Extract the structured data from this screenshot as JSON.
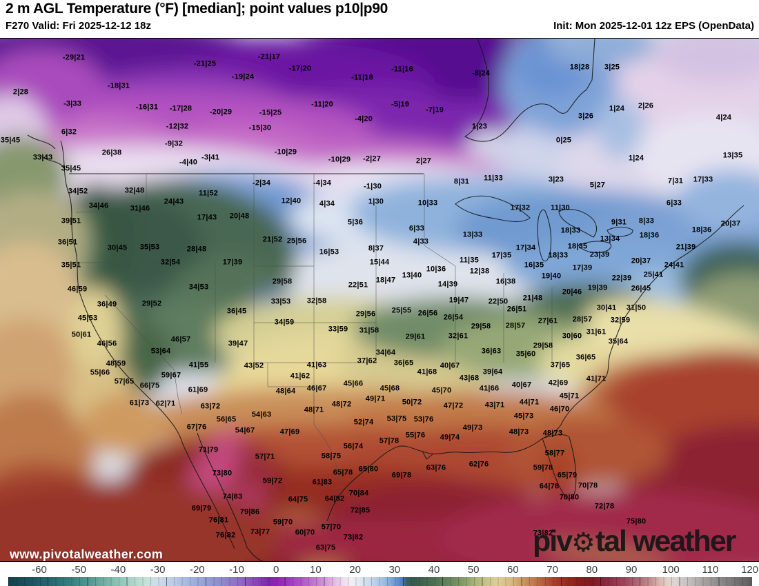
{
  "header": {
    "title": "2 m AGL Temperature (°F) [median]; point values p10|p90",
    "valid": "F270 Valid: Fri 2025-12-12 18z",
    "init": "Init: Mon 2025-12-01 12z EPS (OpenData)"
  },
  "watermark": {
    "url": "www.pivotalweather.com",
    "logo_left": "piv",
    "logo_gear": "⚙",
    "logo_right": "tal weather"
  },
  "colorbar": {
    "units": "°F",
    "ticks": [
      -60,
      -50,
      -40,
      -30,
      -20,
      -10,
      0,
      10,
      20,
      30,
      40,
      50,
      60,
      70,
      80,
      90,
      100,
      110,
      120
    ],
    "stops": [
      [
        -68,
        "#14414d"
      ],
      [
        -62,
        "#1c5360"
      ],
      [
        -57,
        "#27686f"
      ],
      [
        -52,
        "#387f80"
      ],
      [
        -47,
        "#549992"
      ],
      [
        -42,
        "#7db8ab"
      ],
      [
        -37,
        "#a8d2c5"
      ],
      [
        -33,
        "#c6e2d8"
      ],
      [
        -30,
        "#cfdde8"
      ],
      [
        -26,
        "#bccbe6"
      ],
      [
        -22,
        "#a4b4dd"
      ],
      [
        -18,
        "#959fd5"
      ],
      [
        -14,
        "#8e8ccd"
      ],
      [
        -10,
        "#8f70c5"
      ],
      [
        -6,
        "#8a4fb9"
      ],
      [
        -2,
        "#7d27a9"
      ],
      [
        0,
        "#8e25b0"
      ],
      [
        4,
        "#a341bd"
      ],
      [
        8,
        "#b866c8"
      ],
      [
        12,
        "#d093d6"
      ],
      [
        15,
        "#e3bce4"
      ],
      [
        17,
        "#efdcef"
      ],
      [
        19,
        "#f1eef3"
      ],
      [
        21,
        "#e2e9f2"
      ],
      [
        24,
        "#c6d8ec"
      ],
      [
        27,
        "#a3c0e2"
      ],
      [
        30,
        "#6f9cd2"
      ],
      [
        32,
        "#4a7ec2"
      ],
      [
        33,
        "#3a5f63"
      ],
      [
        35,
        "#355a4e"
      ],
      [
        39,
        "#486b51"
      ],
      [
        43,
        "#5f8058"
      ],
      [
        47,
        "#7f9966"
      ],
      [
        50,
        "#a3b175"
      ],
      [
        53,
        "#c6c287"
      ],
      [
        56,
        "#ddd096"
      ],
      [
        59,
        "#d8bd85"
      ],
      [
        62,
        "#cd9c67"
      ],
      [
        65,
        "#c07d50"
      ],
      [
        68,
        "#b25c3a"
      ],
      [
        71,
        "#a33b28"
      ],
      [
        74,
        "#95291f"
      ],
      [
        77,
        "#851f1c"
      ],
      [
        80,
        "#7c1c20"
      ],
      [
        83,
        "#84273a"
      ],
      [
        86,
        "#92384e"
      ],
      [
        89,
        "#a04c61"
      ],
      [
        92,
        "#b16c78"
      ],
      [
        95,
        "#c39190"
      ],
      [
        97,
        "#d4b4ab"
      ],
      [
        99,
        "#e2cfc5"
      ],
      [
        101,
        "#dcd5d0"
      ],
      [
        104,
        "#c6c2c0"
      ],
      [
        108,
        "#a7a4a3"
      ],
      [
        113,
        "#888687"
      ],
      [
        118,
        "#6c6a6b"
      ],
      [
        121,
        "#5e5c5d"
      ]
    ]
  },
  "stations": [
    [
      107,
      83,
      "-29|21"
    ],
    [
      297,
      92,
      "-21|25"
    ],
    [
      352,
      111,
      "-19|24"
    ],
    [
      30,
      133,
      "2|28"
    ],
    [
      172,
      124,
      "-18|31"
    ],
    [
      105,
      150,
      "-3|33"
    ],
    [
      213,
      155,
      "-16|31"
    ],
    [
      262,
      157,
      "-17|28"
    ],
    [
      320,
      162,
      "-20|29"
    ],
    [
      257,
      183,
      "-12|32"
    ],
    [
      100,
      191,
      "6|32"
    ],
    [
      252,
      208,
      "-9|32"
    ],
    [
      15,
      203,
      "35|45"
    ],
    [
      390,
      82,
      "-21|17"
    ],
    [
      435,
      99,
      "-17|20"
    ],
    [
      525,
      112,
      "-11|18"
    ],
    [
      583,
      100,
      "-11|16"
    ],
    [
      697,
      106,
      "-8|24"
    ],
    [
      467,
      151,
      "-11|20"
    ],
    [
      527,
      172,
      "-4|20"
    ],
    [
      580,
      151,
      "-5|19"
    ],
    [
      630,
      159,
      "-7|19"
    ],
    [
      392,
      163,
      "-15|25"
    ],
    [
      377,
      185,
      "-15|30"
    ],
    [
      695,
      183,
      "1|23"
    ],
    [
      840,
      97,
      "18|28"
    ],
    [
      887,
      97,
      "3|25"
    ],
    [
      894,
      157,
      "1|24"
    ],
    [
      936,
      153,
      "2|26"
    ],
    [
      849,
      168,
      "3|26"
    ],
    [
      1049,
      170,
      "4|24"
    ],
    [
      817,
      203,
      "0|25"
    ],
    [
      62,
      228,
      "33|43"
    ],
    [
      162,
      221,
      "26|38"
    ],
    [
      103,
      244,
      "35|45"
    ],
    [
      273,
      235,
      "-4|40"
    ],
    [
      305,
      228,
      "-3|41"
    ],
    [
      113,
      277,
      "34|52"
    ],
    [
      195,
      276,
      "32|48"
    ],
    [
      252,
      292,
      "24|43"
    ],
    [
      302,
      280,
      "11|52"
    ],
    [
      143,
      298,
      "34|46"
    ],
    [
      203,
      302,
      "31|46"
    ],
    [
      300,
      315,
      "17|43"
    ],
    [
      347,
      313,
      "20|48"
    ],
    [
      103,
      320,
      "39|51"
    ],
    [
      98,
      351,
      "36|51"
    ],
    [
      170,
      359,
      "30|45"
    ],
    [
      217,
      358,
      "35|53"
    ],
    [
      285,
      361,
      "28|48"
    ],
    [
      414,
      220,
      "-10|29"
    ],
    [
      492,
      231,
      "-10|29"
    ],
    [
      539,
      230,
      "-2|27"
    ],
    [
      614,
      233,
      "2|27"
    ],
    [
      379,
      265,
      "-2|34"
    ],
    [
      467,
      265,
      "-4|34"
    ],
    [
      540,
      270,
      "-1|30"
    ],
    [
      669,
      263,
      "8|31"
    ],
    [
      715,
      258,
      "11|33"
    ],
    [
      422,
      291,
      "12|40"
    ],
    [
      474,
      295,
      "4|34"
    ],
    [
      545,
      292,
      "1|30"
    ],
    [
      620,
      294,
      "10|33"
    ],
    [
      515,
      322,
      "5|36"
    ],
    [
      604,
      331,
      "6|33"
    ],
    [
      685,
      340,
      "13|33"
    ],
    [
      610,
      350,
      "4|33"
    ],
    [
      395,
      347,
      "21|52"
    ],
    [
      430,
      349,
      "25|56"
    ],
    [
      477,
      365,
      "16|53"
    ],
    [
      545,
      360,
      "8|37"
    ],
    [
      680,
      377,
      "11|35"
    ],
    [
      727,
      370,
      "17|35"
    ],
    [
      922,
      229,
      "1|24"
    ],
    [
      1062,
      225,
      "13|35"
    ],
    [
      806,
      260,
      "3|23"
    ],
    [
      866,
      268,
      "5|27"
    ],
    [
      979,
      262,
      "7|31"
    ],
    [
      1019,
      260,
      "17|33"
    ],
    [
      754,
      301,
      "17|32"
    ],
    [
      812,
      301,
      "11|30"
    ],
    [
      977,
      294,
      "6|33"
    ],
    [
      897,
      322,
      "9|31"
    ],
    [
      937,
      320,
      "8|33"
    ],
    [
      827,
      334,
      "18|33"
    ],
    [
      1017,
      333,
      "18|36"
    ],
    [
      941,
      341,
      "18|36"
    ],
    [
      1059,
      324,
      "20|37"
    ],
    [
      884,
      346,
      "13|34"
    ],
    [
      762,
      359,
      "17|34"
    ],
    [
      837,
      357,
      "18|35"
    ],
    [
      994,
      358,
      "21|39"
    ],
    [
      869,
      369,
      "23|39"
    ],
    [
      809,
      370,
      "18|33"
    ],
    [
      103,
      384,
      "35|51"
    ],
    [
      247,
      380,
      "32|54"
    ],
    [
      337,
      380,
      "17|39"
    ],
    [
      112,
      419,
      "46|59"
    ],
    [
      288,
      416,
      "34|53"
    ],
    [
      155,
      441,
      "36|49"
    ],
    [
      220,
      440,
      "29|52"
    ],
    [
      343,
      451,
      "36|45"
    ],
    [
      127,
      461,
      "45|53"
    ],
    [
      118,
      485,
      "50|61"
    ],
    [
      155,
      498,
      "46|56"
    ],
    [
      262,
      492,
      "46|57"
    ],
    [
      345,
      498,
      "39|47"
    ],
    [
      233,
      509,
      "53|64"
    ],
    [
      168,
      527,
      "48|59"
    ],
    [
      288,
      529,
      "41|55"
    ],
    [
      550,
      380,
      "15|44"
    ],
    [
      632,
      390,
      "10|36"
    ],
    [
      597,
      399,
      "13|40"
    ],
    [
      695,
      393,
      "12|38"
    ],
    [
      409,
      408,
      "29|58"
    ],
    [
      519,
      413,
      "22|51"
    ],
    [
      559,
      406,
      "18|47"
    ],
    [
      649,
      412,
      "14|39"
    ],
    [
      407,
      437,
      "33|53"
    ],
    [
      459,
      436,
      "32|58"
    ],
    [
      665,
      435,
      "19|47"
    ],
    [
      722,
      437,
      "22|50"
    ],
    [
      530,
      455,
      "29|56"
    ],
    [
      582,
      450,
      "25|55"
    ],
    [
      620,
      454,
      "26|56"
    ],
    [
      657,
      460,
      "26|54"
    ],
    [
      412,
      467,
      "34|59"
    ],
    [
      697,
      473,
      "29|58"
    ],
    [
      490,
      477,
      "33|59"
    ],
    [
      535,
      479,
      "31|58"
    ],
    [
      602,
      488,
      "29|61"
    ],
    [
      664,
      487,
      "32|61"
    ],
    [
      712,
      509,
      "36|63"
    ],
    [
      559,
      511,
      "34|64"
    ],
    [
      532,
      523,
      "37|62"
    ],
    [
      585,
      526,
      "36|65"
    ],
    [
      459,
      529,
      "41|63"
    ],
    [
      652,
      530,
      "40|67"
    ],
    [
      368,
      530,
      "43|52"
    ],
    [
      774,
      384,
      "16|35"
    ],
    [
      929,
      378,
      "20|37"
    ],
    [
      977,
      384,
      "24|41"
    ],
    [
      844,
      388,
      "17|39"
    ],
    [
      799,
      400,
      "19|40"
    ],
    [
      901,
      403,
      "22|39"
    ],
    [
      947,
      398,
      "25|41"
    ],
    [
      733,
      408,
      "16|38"
    ],
    [
      866,
      417,
      "19|39"
    ],
    [
      929,
      418,
      "26|45"
    ],
    [
      829,
      423,
      "20|46"
    ],
    [
      772,
      432,
      "21|48"
    ],
    [
      749,
      448,
      "26|51"
    ],
    [
      879,
      446,
      "30|41"
    ],
    [
      922,
      446,
      "31|50"
    ],
    [
      794,
      465,
      "27|61"
    ],
    [
      844,
      463,
      "28|57"
    ],
    [
      747,
      472,
      "28|57"
    ],
    [
      899,
      464,
      "32|59"
    ],
    [
      864,
      481,
      "31|61"
    ],
    [
      829,
      487,
      "30|60"
    ],
    [
      896,
      495,
      "35|64"
    ],
    [
      787,
      501,
      "29|58"
    ],
    [
      762,
      513,
      "35|60"
    ],
    [
      849,
      518,
      "36|65"
    ],
    [
      812,
      529,
      "37|65"
    ],
    [
      145,
      540,
      "55|66"
    ],
    [
      248,
      544,
      "59|67"
    ],
    [
      180,
      553,
      "57|65"
    ],
    [
      217,
      559,
      "66|75"
    ],
    [
      287,
      565,
      "61|69"
    ],
    [
      202,
      584,
      "61|73"
    ],
    [
      240,
      585,
      "62|71"
    ],
    [
      305,
      589,
      "63|72"
    ],
    [
      328,
      608,
      "56|65"
    ],
    [
      285,
      619,
      "67|76"
    ],
    [
      302,
      652,
      "71|79"
    ],
    [
      322,
      686,
      "73|80"
    ],
    [
      435,
      545,
      "41|62"
    ],
    [
      619,
      539,
      "41|68"
    ],
    [
      680,
      548,
      "43|68"
    ],
    [
      714,
      539,
      "39|64"
    ],
    [
      414,
      567,
      "48|64"
    ],
    [
      459,
      563,
      "46|67"
    ],
    [
      512,
      556,
      "45|66"
    ],
    [
      565,
      563,
      "45|68"
    ],
    [
      640,
      566,
      "45|70"
    ],
    [
      709,
      563,
      "41|66"
    ],
    [
      544,
      578,
      "49|71"
    ],
    [
      597,
      583,
      "50|72"
    ],
    [
      657,
      588,
      "47|72"
    ],
    [
      717,
      587,
      "43|71"
    ],
    [
      495,
      586,
      "48|72"
    ],
    [
      455,
      594,
      "48|71"
    ],
    [
      379,
      601,
      "54|63"
    ],
    [
      355,
      624,
      "54|67"
    ],
    [
      420,
      626,
      "47|69"
    ],
    [
      527,
      612,
      "52|74"
    ],
    [
      575,
      607,
      "53|75"
    ],
    [
      614,
      608,
      "53|76"
    ],
    [
      685,
      620,
      "49|73"
    ],
    [
      602,
      631,
      "55|76"
    ],
    [
      652,
      634,
      "49|74"
    ],
    [
      564,
      639,
      "57|78"
    ],
    [
      512,
      647,
      "56|74"
    ],
    [
      384,
      662,
      "57|71"
    ],
    [
      480,
      661,
      "58|75"
    ],
    [
      632,
      678,
      "63|76"
    ],
    [
      694,
      673,
      "62|76"
    ],
    [
      534,
      680,
      "65|80"
    ],
    [
      497,
      685,
      "65|78"
    ],
    [
      582,
      689,
      "69|78"
    ],
    [
      756,
      558,
      "40|67"
    ],
    [
      809,
      555,
      "42|69"
    ],
    [
      864,
      549,
      "41|71"
    ],
    [
      767,
      583,
      "44|71"
    ],
    [
      825,
      574,
      "45|71"
    ],
    [
      811,
      593,
      "46|70"
    ],
    [
      759,
      603,
      "45|73"
    ],
    [
      752,
      626,
      "48|73"
    ],
    [
      801,
      628,
      "48|73"
    ],
    [
      804,
      657,
      "58|77"
    ],
    [
      787,
      678,
      "59|78"
    ],
    [
      822,
      689,
      "65|79"
    ],
    [
      337,
      720,
      "74|83"
    ],
    [
      292,
      737,
      "69|79"
    ],
    [
      362,
      742,
      "79|86"
    ],
    [
      317,
      754,
      "76|81"
    ],
    [
      327,
      776,
      "76|82"
    ],
    [
      395,
      697,
      "59|72"
    ],
    [
      467,
      699,
      "61|83"
    ],
    [
      520,
      715,
      "70|84"
    ],
    [
      432,
      724,
      "64|75"
    ],
    [
      485,
      723,
      "64|82"
    ],
    [
      522,
      740,
      "72|85"
    ],
    [
      410,
      757,
      "59|70"
    ],
    [
      377,
      771,
      "73|77"
    ],
    [
      480,
      764,
      "57|70"
    ],
    [
      442,
      772,
      "60|70"
    ],
    [
      512,
      779,
      "73|82"
    ],
    [
      472,
      794,
      "63|75"
    ],
    [
      796,
      705,
      "64|78"
    ],
    [
      852,
      704,
      "70|78"
    ],
    [
      825,
      721,
      "70|80"
    ],
    [
      876,
      734,
      "72|78"
    ],
    [
      922,
      756,
      "75|80"
    ],
    [
      787,
      773,
      "73|82"
    ]
  ]
}
